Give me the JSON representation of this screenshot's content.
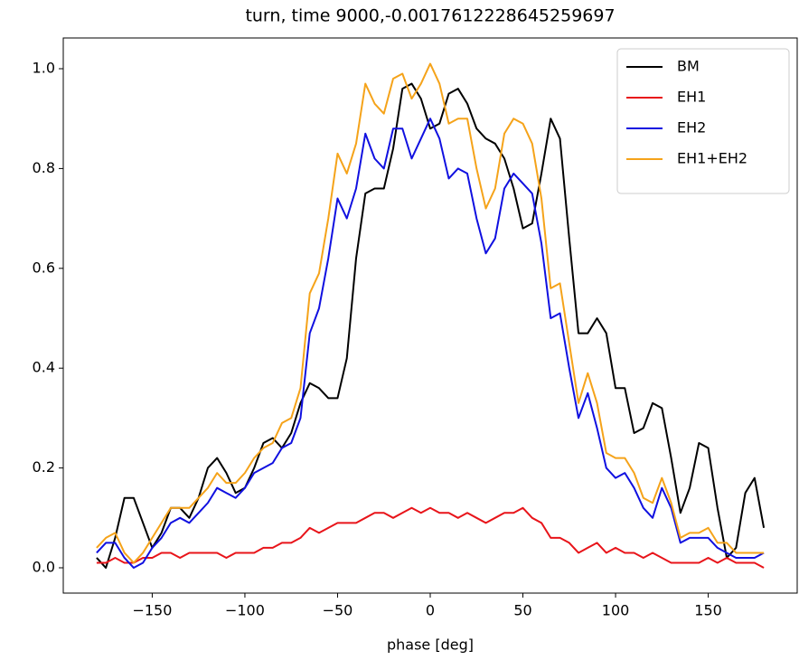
{
  "chart_data": {
    "type": "line",
    "title": "turn, time 9000,-0.0017612228645259697",
    "x_label": "phase [deg]",
    "x": [
      -180,
      -175,
      -170,
      -165,
      -160,
      -155,
      -150,
      -145,
      -140,
      -135,
      -130,
      -125,
      -120,
      -115,
      -110,
      -105,
      -100,
      -95,
      -90,
      -85,
      -80,
      -75,
      -70,
      -65,
      -60,
      -55,
      -50,
      -45,
      -40,
      -35,
      -30,
      -25,
      -20,
      -15,
      -10,
      -5,
      0,
      5,
      10,
      15,
      20,
      25,
      30,
      35,
      40,
      45,
      50,
      55,
      60,
      65,
      70,
      75,
      80,
      85,
      90,
      95,
      100,
      105,
      110,
      115,
      120,
      125,
      130,
      135,
      140,
      145,
      150,
      155,
      160,
      165,
      170,
      175,
      180
    ],
    "series": [
      {
        "name": "BM",
        "color": "#000000",
        "values": [
          0.02,
          0.0,
          0.06,
          0.14,
          0.14,
          0.09,
          0.04,
          0.07,
          0.12,
          0.12,
          0.1,
          0.14,
          0.2,
          0.22,
          0.19,
          0.15,
          0.16,
          0.2,
          0.25,
          0.26,
          0.24,
          0.27,
          0.33,
          0.37,
          0.36,
          0.34,
          0.34,
          0.42,
          0.62,
          0.75,
          0.76,
          0.76,
          0.84,
          0.96,
          0.97,
          0.94,
          0.88,
          0.89,
          0.95,
          0.96,
          0.93,
          0.88,
          0.86,
          0.85,
          0.82,
          0.76,
          0.68,
          0.69,
          0.79,
          0.9,
          0.86,
          0.66,
          0.47,
          0.47,
          0.5,
          0.47,
          0.36,
          0.36,
          0.27,
          0.28,
          0.33,
          0.32,
          0.22,
          0.11,
          0.16,
          0.25,
          0.24,
          0.12,
          0.02,
          0.04,
          0.15,
          0.18,
          0.08
        ]
      },
      {
        "name": "EH1",
        "color": "#e8141a",
        "values": [
          0.01,
          0.01,
          0.02,
          0.01,
          0.01,
          0.02,
          0.02,
          0.03,
          0.03,
          0.02,
          0.03,
          0.03,
          0.03,
          0.03,
          0.02,
          0.03,
          0.03,
          0.03,
          0.04,
          0.04,
          0.05,
          0.05,
          0.06,
          0.08,
          0.07,
          0.08,
          0.09,
          0.09,
          0.09,
          0.1,
          0.11,
          0.11,
          0.1,
          0.11,
          0.12,
          0.11,
          0.12,
          0.11,
          0.11,
          0.1,
          0.11,
          0.1,
          0.09,
          0.1,
          0.11,
          0.11,
          0.12,
          0.1,
          0.09,
          0.06,
          0.06,
          0.05,
          0.03,
          0.04,
          0.05,
          0.03,
          0.04,
          0.03,
          0.03,
          0.02,
          0.03,
          0.02,
          0.01,
          0.01,
          0.01,
          0.01,
          0.02,
          0.01,
          0.02,
          0.01,
          0.01,
          0.01,
          0.0
        ]
      },
      {
        "name": "EH2",
        "color": "#1010e0",
        "values": [
          0.03,
          0.05,
          0.05,
          0.02,
          0.0,
          0.01,
          0.04,
          0.06,
          0.09,
          0.1,
          0.09,
          0.11,
          0.13,
          0.16,
          0.15,
          0.14,
          0.16,
          0.19,
          0.2,
          0.21,
          0.24,
          0.25,
          0.3,
          0.47,
          0.52,
          0.62,
          0.74,
          0.7,
          0.76,
          0.87,
          0.82,
          0.8,
          0.88,
          0.88,
          0.82,
          0.86,
          0.9,
          0.86,
          0.78,
          0.8,
          0.79,
          0.7,
          0.63,
          0.66,
          0.76,
          0.79,
          0.77,
          0.75,
          0.65,
          0.5,
          0.51,
          0.4,
          0.3,
          0.35,
          0.28,
          0.2,
          0.18,
          0.19,
          0.16,
          0.12,
          0.1,
          0.16,
          0.12,
          0.05,
          0.06,
          0.06,
          0.06,
          0.04,
          0.03,
          0.02,
          0.02,
          0.02,
          0.03
        ]
      },
      {
        "name": "EH1+EH2",
        "color": "#f5a31a",
        "values": [
          0.04,
          0.06,
          0.07,
          0.03,
          0.01,
          0.03,
          0.06,
          0.09,
          0.12,
          0.12,
          0.12,
          0.14,
          0.16,
          0.19,
          0.17,
          0.17,
          0.19,
          0.22,
          0.24,
          0.25,
          0.29,
          0.3,
          0.36,
          0.55,
          0.59,
          0.7,
          0.83,
          0.79,
          0.85,
          0.97,
          0.93,
          0.91,
          0.98,
          0.99,
          0.94,
          0.97,
          1.01,
          0.97,
          0.89,
          0.9,
          0.9,
          0.8,
          0.72,
          0.76,
          0.87,
          0.9,
          0.89,
          0.85,
          0.74,
          0.56,
          0.57,
          0.45,
          0.33,
          0.39,
          0.33,
          0.23,
          0.22,
          0.22,
          0.19,
          0.14,
          0.13,
          0.18,
          0.13,
          0.06,
          0.07,
          0.07,
          0.08,
          0.05,
          0.05,
          0.03,
          0.03,
          0.03,
          0.03
        ]
      }
    ],
    "xlim": [
      -198,
      198
    ],
    "ylim": [
      -0.0507,
      1.0616
    ],
    "xticks": [
      {
        "value": -150,
        "label": "−150"
      },
      {
        "value": -100,
        "label": "−100"
      },
      {
        "value": -50,
        "label": "−50"
      },
      0,
      50,
      100,
      150
    ],
    "yticks": [
      {
        "value": 0,
        "label": "0.0"
      },
      {
        "value": 0.2,
        "label": "0.2"
      },
      {
        "value": 0.4,
        "label": "0.4"
      },
      {
        "value": 0.6,
        "label": "0.6"
      },
      {
        "value": 0.8,
        "label": "0.8"
      },
      {
        "value": 1.0,
        "label": "1.0"
      }
    ],
    "legend": "upper right"
  }
}
